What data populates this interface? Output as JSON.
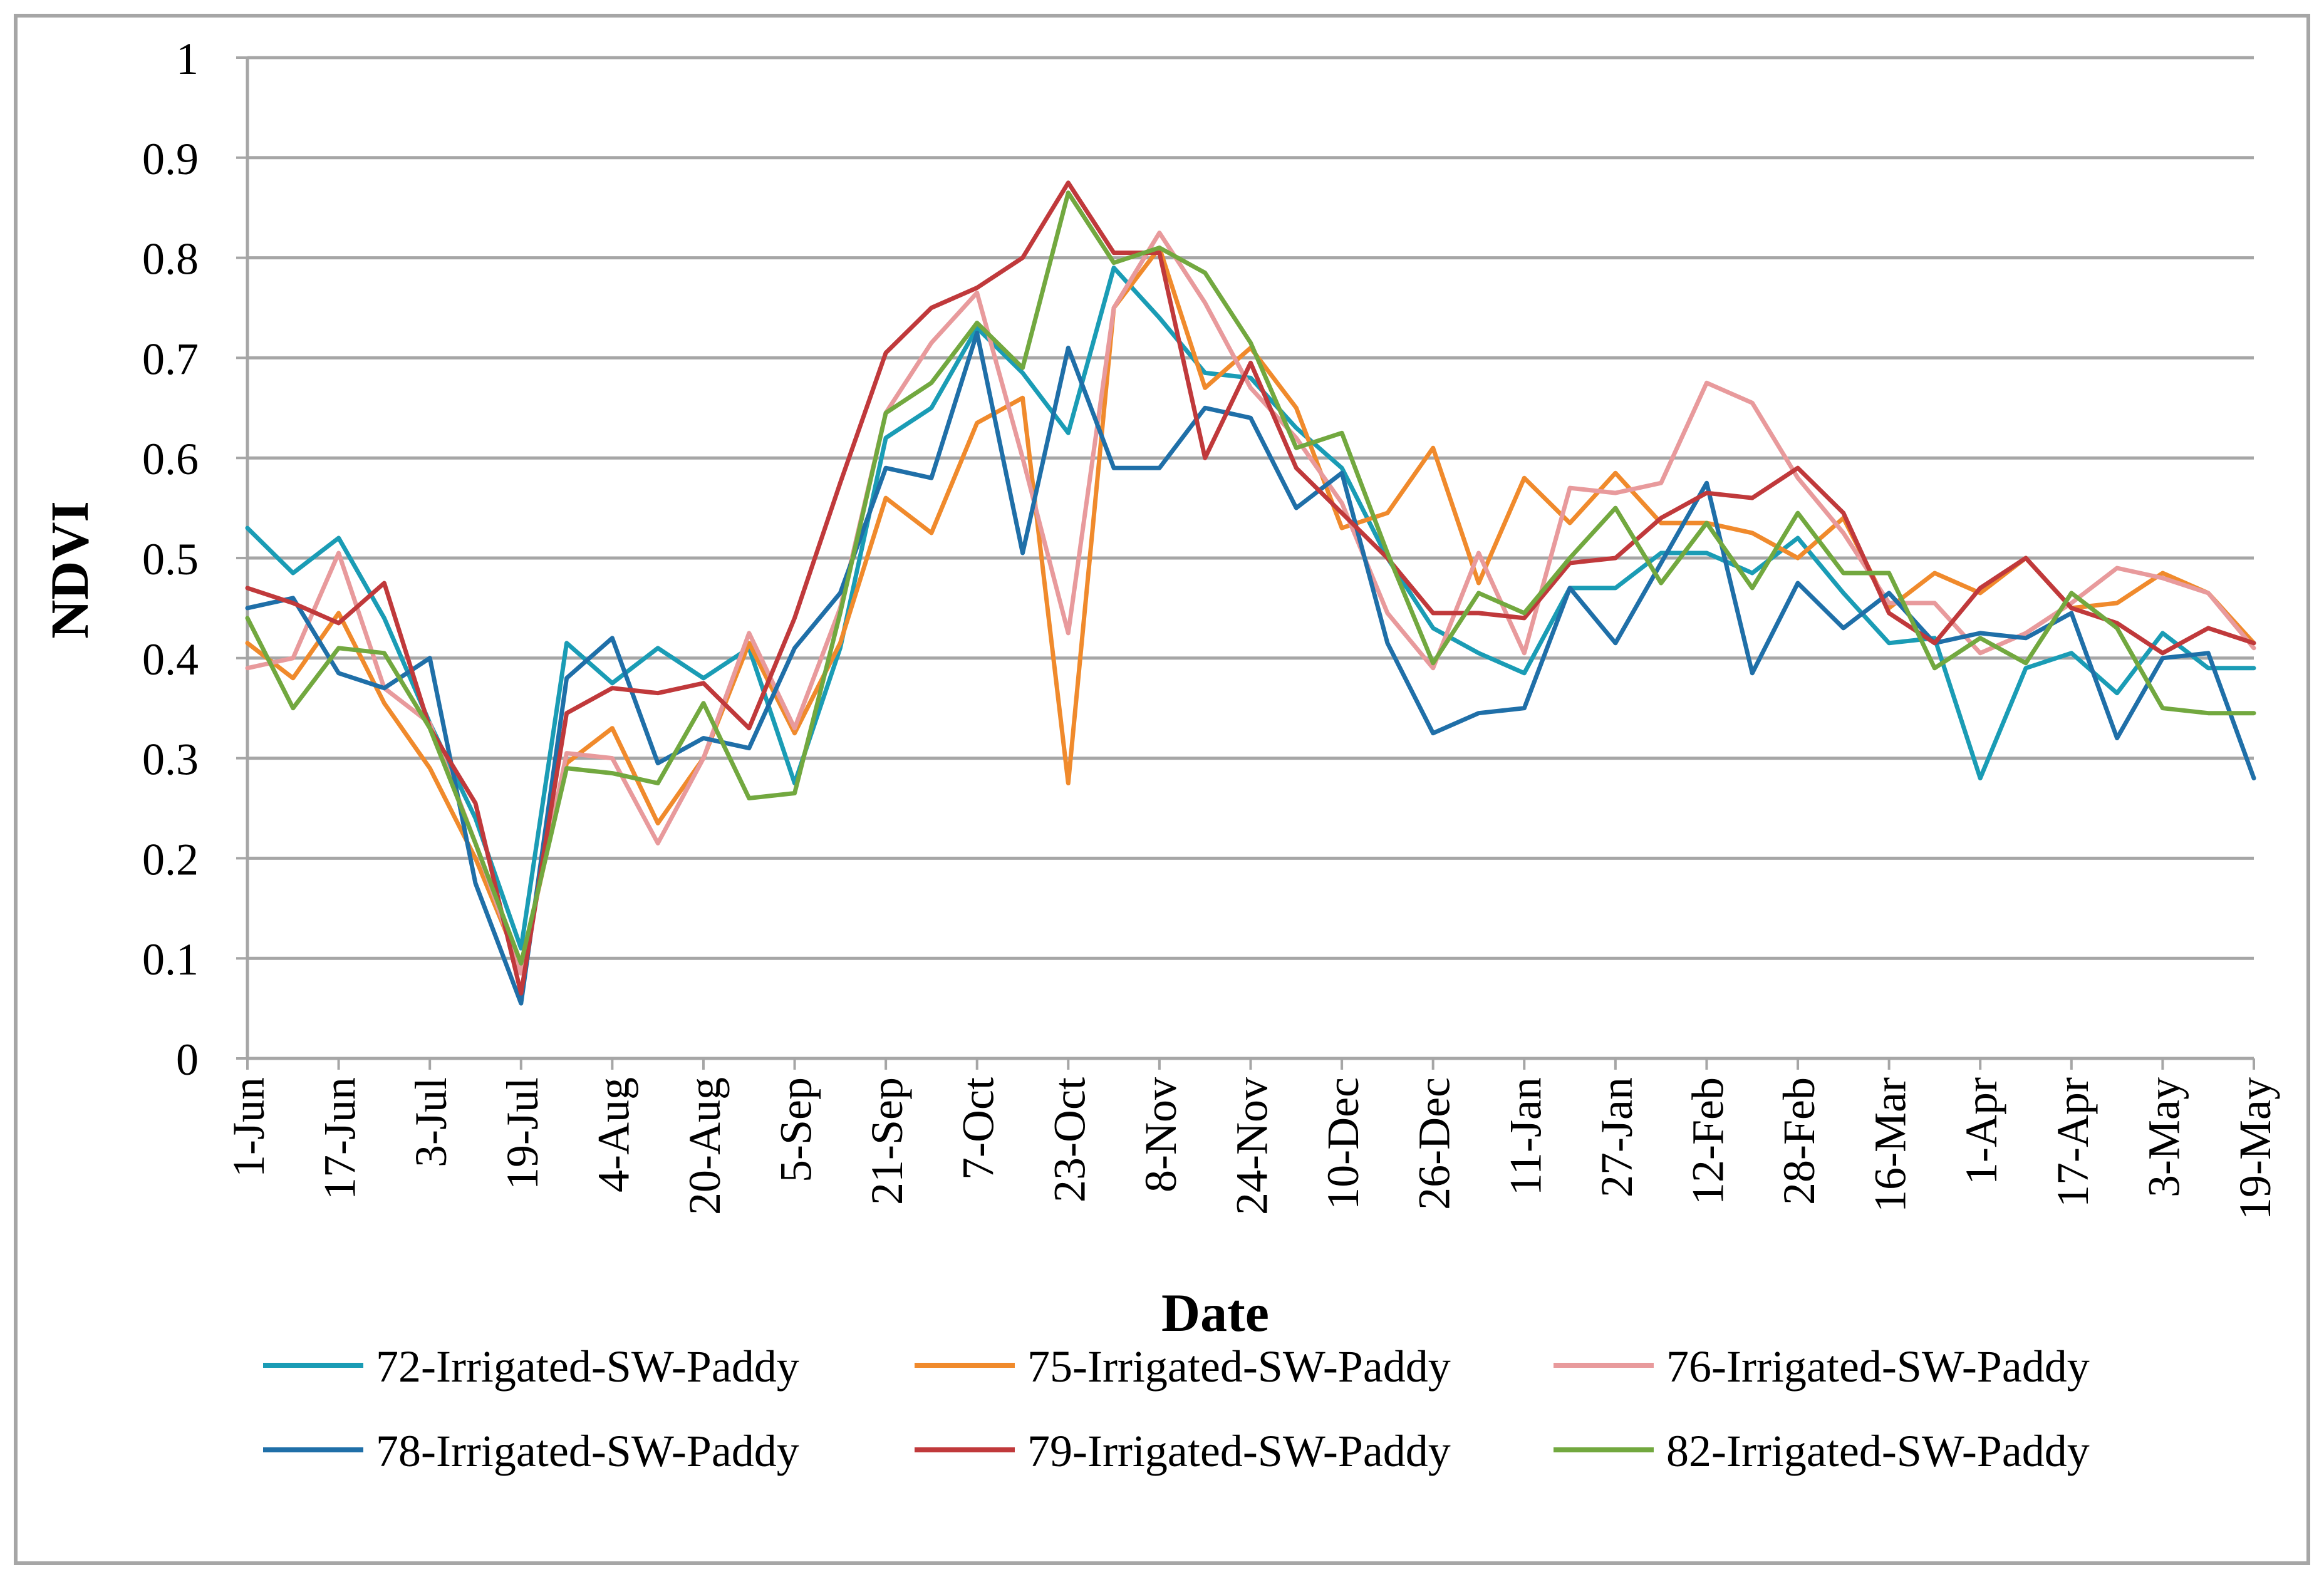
{
  "chart_data": {
    "type": "line",
    "title": "",
    "xlabel": "Date",
    "ylabel": "NDVI",
    "ylim": [
      0,
      1
    ],
    "yticks": [
      "0",
      "0.1",
      "0.2",
      "0.3",
      "0.4",
      "0.5",
      "0.6",
      "0.7",
      "0.8",
      "0.9",
      "1"
    ],
    "grid": true,
    "legend_position": "bottom",
    "x_tick_labels": [
      "1-Jun",
      "17-Jun",
      "3-Jul",
      "19-Jul",
      "4-Aug",
      "20-Aug",
      "5-Sep",
      "21-Sep",
      "7-Oct",
      "23-Oct",
      "8-Nov",
      "24-Nov",
      "10-Dec",
      "26-Dec",
      "11-Jan",
      "27-Jan",
      "12-Feb",
      "28-Feb",
      "16-Mar",
      "1-Apr",
      "17-Apr",
      "3-May",
      "19-May"
    ],
    "series": [
      {
        "name": "72-Irrigated-SW-Paddy",
        "color": "#1a9cb5",
        "values": [
          0.53,
          0.485,
          0.52,
          0.44,
          0.335,
          0.24,
          0.11,
          0.415,
          0.375,
          0.41,
          0.38,
          0.41,
          0.275,
          0.41,
          0.62,
          0.65,
          0.73,
          0.685,
          0.625,
          0.79,
          0.74,
          0.685,
          0.68,
          0.63,
          0.59,
          0.5,
          0.43,
          0.405,
          0.385,
          0.47,
          0.47,
          0.505,
          0.505,
          0.485,
          0.52,
          0.465,
          0.415,
          0.42,
          0.28,
          0.39,
          0.405,
          0.365,
          0.425,
          0.39,
          0.39
        ]
      },
      {
        "name": "75-Irrigated-SW-Paddy",
        "color": "#f08a2c",
        "values": [
          0.415,
          0.38,
          0.445,
          0.355,
          0.29,
          0.2,
          0.09,
          0.295,
          0.33,
          0.235,
          0.3,
          0.415,
          0.325,
          0.415,
          0.56,
          0.525,
          0.635,
          0.66,
          0.275,
          0.75,
          0.81,
          0.67,
          0.71,
          0.65,
          0.53,
          0.545,
          0.61,
          0.475,
          0.58,
          0.535,
          0.585,
          0.535,
          0.535,
          0.525,
          0.5,
          0.54,
          0.45,
          0.485,
          0.465,
          0.5,
          0.45,
          0.455,
          0.485,
          0.465,
          0.415
        ]
      },
      {
        "name": "76-Irrigated-SW-Paddy",
        "color": "#e89a9c",
        "values": [
          0.39,
          0.4,
          0.505,
          0.37,
          0.335,
          0.215,
          0.085,
          0.305,
          0.3,
          0.215,
          0.3,
          0.425,
          0.33,
          0.45,
          0.645,
          0.715,
          0.765,
          0.6,
          0.425,
          0.75,
          0.825,
          0.755,
          0.67,
          0.62,
          0.555,
          0.445,
          0.39,
          0.505,
          0.405,
          0.57,
          0.565,
          0.575,
          0.675,
          0.655,
          0.58,
          0.525,
          0.455,
          0.455,
          0.405,
          0.425,
          0.455,
          0.49,
          0.48,
          0.465,
          0.41
        ]
      },
      {
        "name": "78-Irrigated-SW-Paddy",
        "color": "#1f6fa8",
        "values": [
          0.45,
          0.46,
          0.385,
          0.37,
          0.4,
          0.175,
          0.055,
          0.38,
          0.42,
          0.295,
          0.32,
          0.31,
          0.41,
          0.465,
          0.59,
          0.58,
          0.725,
          0.505,
          0.71,
          0.59,
          0.59,
          0.65,
          0.64,
          0.55,
          0.585,
          0.415,
          0.325,
          0.345,
          0.35,
          0.47,
          0.415,
          0.495,
          0.575,
          0.385,
          0.475,
          0.43,
          0.465,
          0.415,
          0.425,
          0.42,
          0.445,
          0.32,
          0.4,
          0.405,
          0.28
        ]
      },
      {
        "name": "79-Irrigated-SW-Paddy",
        "color": "#c0393b",
        "values": [
          0.47,
          0.455,
          0.435,
          0.475,
          0.33,
          0.255,
          0.065,
          0.345,
          0.37,
          0.365,
          0.375,
          0.33,
          0.44,
          0.575,
          0.705,
          0.75,
          0.77,
          0.8,
          0.875,
          0.805,
          0.805,
          0.6,
          0.695,
          0.59,
          0.545,
          0.5,
          0.445,
          0.445,
          0.44,
          0.495,
          0.5,
          0.54,
          0.565,
          0.56,
          0.59,
          0.545,
          0.445,
          0.415,
          0.47,
          0.5,
          0.45,
          0.435,
          0.405,
          0.43,
          0.415
        ]
      },
      {
        "name": "82-Irrigated-SW-Paddy",
        "color": "#72a83f",
        "values": [
          0.44,
          0.35,
          0.41,
          0.405,
          0.33,
          0.215,
          0.095,
          0.29,
          0.285,
          0.275,
          0.355,
          0.26,
          0.265,
          0.445,
          0.645,
          0.675,
          0.735,
          0.69,
          0.865,
          0.795,
          0.81,
          0.785,
          0.715,
          0.61,
          0.625,
          0.505,
          0.395,
          0.465,
          0.445,
          0.5,
          0.55,
          0.475,
          0.535,
          0.47,
          0.545,
          0.485,
          0.485,
          0.39,
          0.42,
          0.395,
          0.465,
          0.43,
          0.35,
          0.345,
          0.345
        ]
      }
    ]
  }
}
